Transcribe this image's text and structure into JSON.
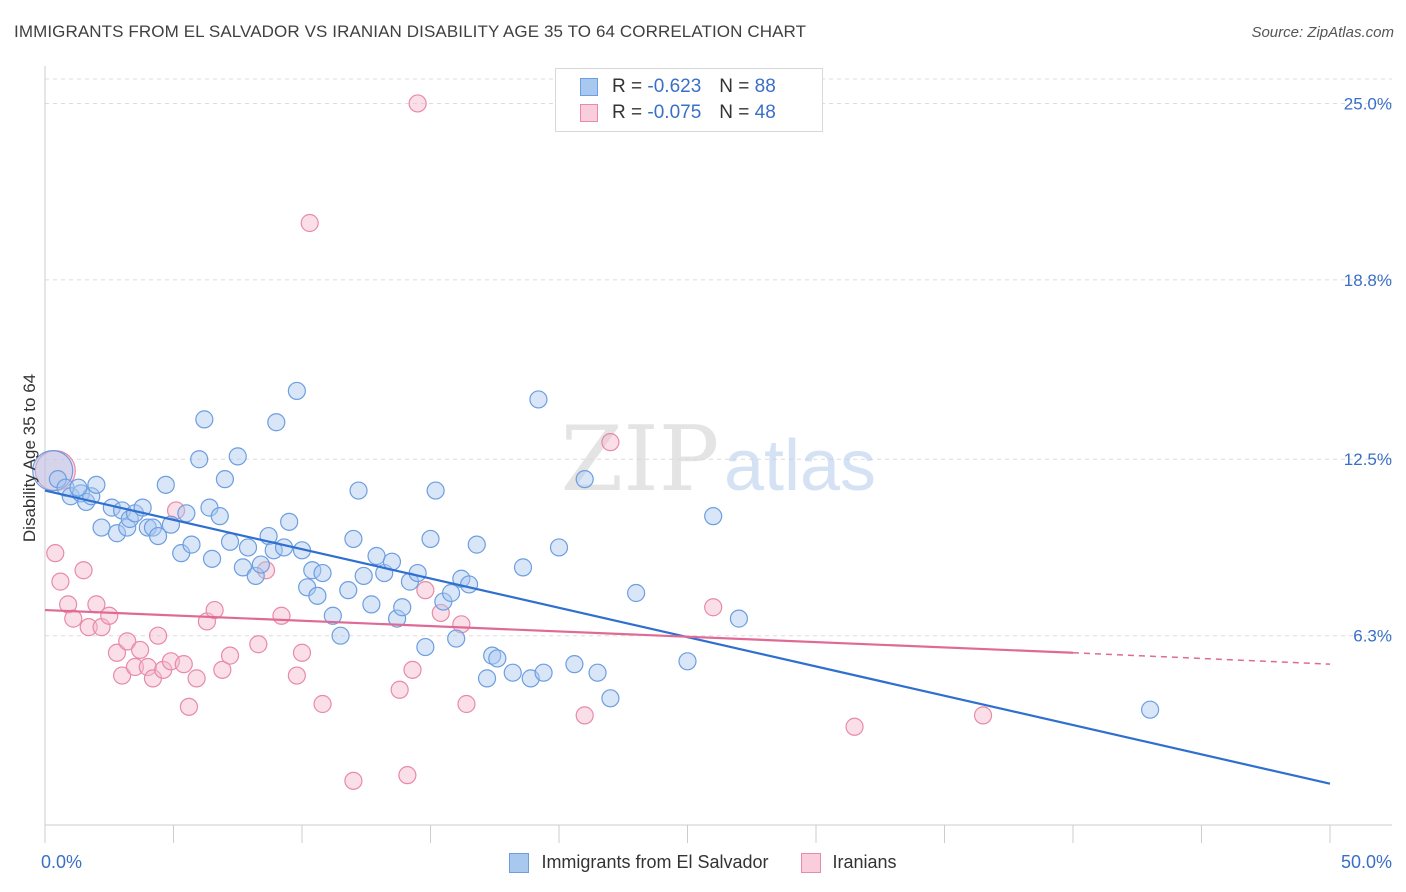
{
  "title": "IMMIGRANTS FROM EL SALVADOR VS IRANIAN DISABILITY AGE 35 TO 64 CORRELATION CHART",
  "source": "Source: ZipAtlas.com",
  "watermark": {
    "zip": "ZIP",
    "atlas": "atlas"
  },
  "legend": {
    "rows": [
      {
        "r_label": "R =",
        "r_value": "-0.623",
        "n_label": "N =",
        "n_value": "88"
      },
      {
        "r_label": "R =",
        "r_value": "-0.075",
        "n_label": "N =",
        "n_value": "48"
      }
    ]
  },
  "colors": {
    "blue_fill": "#a9c8ef",
    "blue_stroke": "#6d9ee0",
    "blue_line": "#2f6fd0",
    "pink_fill": "#f5b8cc",
    "pink_stroke": "#e88aa8",
    "pink_line": "#e06a96",
    "tick_label": "#3a6fc7",
    "grid": "#dcdcdc"
  },
  "chart_data": {
    "type": "scatter",
    "xlabel": "",
    "ylabel": "Disability Age 35 to 64",
    "xlim": [
      0,
      50
    ],
    "ylim": [
      0,
      26
    ],
    "x_tick_labels": [
      {
        "value": 0,
        "label": "0.0%"
      },
      {
        "value": 50,
        "label": "50.0%"
      }
    ],
    "y_tick_labels": [
      {
        "value": 6.3,
        "label": "6.3%"
      },
      {
        "value": 12.5,
        "label": "12.5%"
      },
      {
        "value": 18.8,
        "label": "18.8%"
      },
      {
        "value": 25.0,
        "label": "25.0%"
      }
    ],
    "grid": "horizontal dashed",
    "legend_position": "top-center",
    "series": [
      {
        "name": "Immigrants from El Salvador",
        "color": "blue",
        "trend": {
          "x": [
            0,
            50
          ],
          "y": [
            11.4,
            1.1
          ]
        },
        "points": [
          {
            "x": 0.3,
            "y": 12.1,
            "big": true
          },
          {
            "x": 0.5,
            "y": 11.8
          },
          {
            "x": 0.8,
            "y": 11.5
          },
          {
            "x": 1.0,
            "y": 11.2
          },
          {
            "x": 1.4,
            "y": 11.3
          },
          {
            "x": 1.6,
            "y": 11.0
          },
          {
            "x": 1.8,
            "y": 11.2
          },
          {
            "x": 2.0,
            "y": 11.6
          },
          {
            "x": 1.3,
            "y": 11.5
          },
          {
            "x": 2.2,
            "y": 10.1
          },
          {
            "x": 2.6,
            "y": 10.8
          },
          {
            "x": 2.8,
            "y": 9.9
          },
          {
            "x": 3.0,
            "y": 10.7
          },
          {
            "x": 3.2,
            "y": 10.1
          },
          {
            "x": 3.3,
            "y": 10.4
          },
          {
            "x": 3.5,
            "y": 10.6
          },
          {
            "x": 3.8,
            "y": 10.8
          },
          {
            "x": 4.0,
            "y": 10.1
          },
          {
            "x": 4.2,
            "y": 10.1
          },
          {
            "x": 4.4,
            "y": 9.8
          },
          {
            "x": 4.7,
            "y": 11.6
          },
          {
            "x": 4.9,
            "y": 10.2
          },
          {
            "x": 5.3,
            "y": 9.2
          },
          {
            "x": 5.5,
            "y": 10.6
          },
          {
            "x": 5.7,
            "y": 9.5
          },
          {
            "x": 6.0,
            "y": 12.5
          },
          {
            "x": 6.2,
            "y": 13.9
          },
          {
            "x": 6.4,
            "y": 10.8
          },
          {
            "x": 6.5,
            "y": 9.0
          },
          {
            "x": 6.8,
            "y": 10.5
          },
          {
            "x": 7.0,
            "y": 11.8
          },
          {
            "x": 7.2,
            "y": 9.6
          },
          {
            "x": 7.5,
            "y": 12.6
          },
          {
            "x": 7.7,
            "y": 8.7
          },
          {
            "x": 7.9,
            "y": 9.4
          },
          {
            "x": 8.2,
            "y": 8.4
          },
          {
            "x": 8.4,
            "y": 8.8
          },
          {
            "x": 8.7,
            "y": 9.8
          },
          {
            "x": 8.9,
            "y": 9.3
          },
          {
            "x": 9.0,
            "y": 13.8
          },
          {
            "x": 9.3,
            "y": 9.4
          },
          {
            "x": 9.5,
            "y": 10.3
          },
          {
            "x": 9.8,
            "y": 14.9
          },
          {
            "x": 10.0,
            "y": 9.3
          },
          {
            "x": 10.2,
            "y": 8.0
          },
          {
            "x": 10.4,
            "y": 8.6
          },
          {
            "x": 10.6,
            "y": 7.7
          },
          {
            "x": 10.8,
            "y": 8.5
          },
          {
            "x": 11.2,
            "y": 7.0
          },
          {
            "x": 11.5,
            "y": 6.3
          },
          {
            "x": 11.8,
            "y": 7.9
          },
          {
            "x": 12.0,
            "y": 9.7
          },
          {
            "x": 12.2,
            "y": 11.4
          },
          {
            "x": 12.4,
            "y": 8.4
          },
          {
            "x": 12.7,
            "y": 7.4
          },
          {
            "x": 12.9,
            "y": 9.1
          },
          {
            "x": 13.2,
            "y": 8.5
          },
          {
            "x": 13.5,
            "y": 8.9
          },
          {
            "x": 13.7,
            "y": 6.9
          },
          {
            "x": 13.9,
            "y": 7.3
          },
          {
            "x": 14.2,
            "y": 8.2
          },
          {
            "x": 14.5,
            "y": 8.5
          },
          {
            "x": 14.8,
            "y": 5.9
          },
          {
            "x": 15.0,
            "y": 9.7
          },
          {
            "x": 15.2,
            "y": 11.4
          },
          {
            "x": 15.5,
            "y": 7.5
          },
          {
            "x": 15.8,
            "y": 7.8
          },
          {
            "x": 16.0,
            "y": 6.2
          },
          {
            "x": 16.2,
            "y": 8.3
          },
          {
            "x": 16.5,
            "y": 8.1
          },
          {
            "x": 16.8,
            "y": 9.5
          },
          {
            "x": 17.2,
            "y": 4.8
          },
          {
            "x": 17.4,
            "y": 5.6
          },
          {
            "x": 17.6,
            "y": 5.5
          },
          {
            "x": 18.2,
            "y": 5.0
          },
          {
            "x": 18.6,
            "y": 8.7
          },
          {
            "x": 18.9,
            "y": 4.8
          },
          {
            "x": 19.2,
            "y": 14.6
          },
          {
            "x": 19.4,
            "y": 5.0
          },
          {
            "x": 20.0,
            "y": 9.4
          },
          {
            "x": 20.6,
            "y": 5.3
          },
          {
            "x": 21.0,
            "y": 11.8
          },
          {
            "x": 21.5,
            "y": 5.0
          },
          {
            "x": 22.0,
            "y": 4.1
          },
          {
            "x": 23.0,
            "y": 7.8
          },
          {
            "x": 25.0,
            "y": 5.4
          },
          {
            "x": 26.0,
            "y": 10.5
          },
          {
            "x": 27.0,
            "y": 6.9
          },
          {
            "x": 43.0,
            "y": 3.7
          }
        ]
      },
      {
        "name": "Iranians",
        "color": "pink",
        "trend": {
          "x": [
            0,
            40
          ],
          "y": [
            7.2,
            5.7
          ],
          "dashed_to": {
            "x": 50,
            "y": 5.3
          }
        },
        "points": [
          {
            "x": 0.4,
            "y": 12.1,
            "big": true
          },
          {
            "x": 0.4,
            "y": 9.2
          },
          {
            "x": 0.6,
            "y": 8.2
          },
          {
            "x": 0.9,
            "y": 7.4
          },
          {
            "x": 1.1,
            "y": 6.9
          },
          {
            "x": 1.5,
            "y": 8.6
          },
          {
            "x": 1.7,
            "y": 6.6
          },
          {
            "x": 2.0,
            "y": 7.4
          },
          {
            "x": 2.2,
            "y": 6.6
          },
          {
            "x": 2.5,
            "y": 7.0
          },
          {
            "x": 2.8,
            "y": 5.7
          },
          {
            "x": 3.0,
            "y": 4.9
          },
          {
            "x": 3.2,
            "y": 6.1
          },
          {
            "x": 3.5,
            "y": 5.2
          },
          {
            "x": 3.7,
            "y": 5.8
          },
          {
            "x": 4.0,
            "y": 5.2
          },
          {
            "x": 4.2,
            "y": 4.8
          },
          {
            "x": 4.4,
            "y": 6.3
          },
          {
            "x": 4.6,
            "y": 5.1
          },
          {
            "x": 4.9,
            "y": 5.4
          },
          {
            "x": 5.1,
            "y": 10.7
          },
          {
            "x": 5.4,
            "y": 5.3
          },
          {
            "x": 5.6,
            "y": 3.8
          },
          {
            "x": 5.9,
            "y": 4.8
          },
          {
            "x": 6.3,
            "y": 6.8
          },
          {
            "x": 6.6,
            "y": 7.2
          },
          {
            "x": 6.9,
            "y": 5.1
          },
          {
            "x": 7.2,
            "y": 5.6
          },
          {
            "x": 8.6,
            "y": 8.6
          },
          {
            "x": 8.3,
            "y": 6.0
          },
          {
            "x": 9.2,
            "y": 7.0
          },
          {
            "x": 9.8,
            "y": 4.9
          },
          {
            "x": 10.0,
            "y": 5.7
          },
          {
            "x": 10.3,
            "y": 20.8
          },
          {
            "x": 10.8,
            "y": 3.9
          },
          {
            "x": 12.0,
            "y": 1.2
          },
          {
            "x": 13.8,
            "y": 4.4
          },
          {
            "x": 14.1,
            "y": 1.4
          },
          {
            "x": 14.3,
            "y": 5.1
          },
          {
            "x": 14.5,
            "y": 25.0
          },
          {
            "x": 14.8,
            "y": 7.9
          },
          {
            "x": 15.4,
            "y": 7.1
          },
          {
            "x": 16.2,
            "y": 6.7
          },
          {
            "x": 16.4,
            "y": 3.9
          },
          {
            "x": 21.0,
            "y": 3.5
          },
          {
            "x": 22.0,
            "y": 13.1
          },
          {
            "x": 26.0,
            "y": 7.3
          },
          {
            "x": 31.5,
            "y": 3.1
          },
          {
            "x": 36.5,
            "y": 3.5
          }
        ]
      }
    ]
  },
  "bottom_legend": [
    {
      "label": "Immigrants from El Salvador"
    },
    {
      "label": "Iranians"
    }
  ]
}
